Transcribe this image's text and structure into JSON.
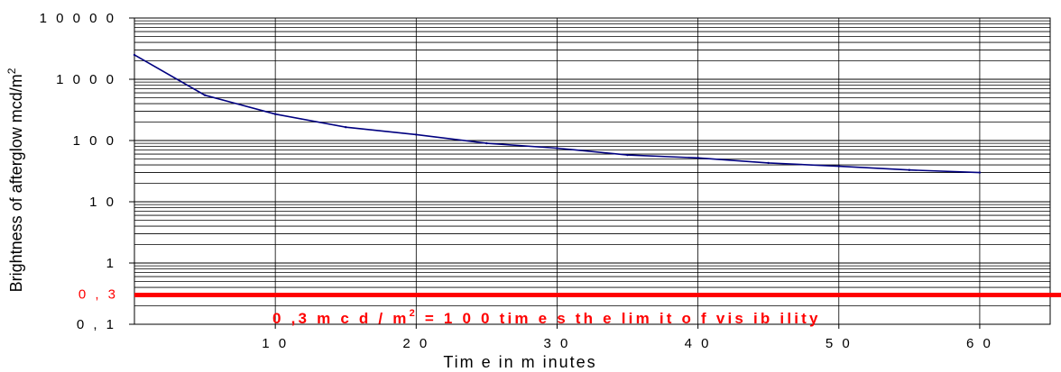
{
  "chart_data": {
    "type": "line",
    "xlabel": "Tim e  in  m inutes",
    "ylabel": "Brightness of afterglow mcd/m",
    "ylabel_sup": "2",
    "y_scale": "log",
    "xlim": [
      0,
      65
    ],
    "ylim": [
      0.1,
      10000
    ],
    "grid": true,
    "x_ticks": [
      {
        "value": 10,
        "label": "1 0"
      },
      {
        "value": 20,
        "label": "2 0"
      },
      {
        "value": 30,
        "label": "3 0"
      },
      {
        "value": 40,
        "label": "4 0"
      },
      {
        "value": 50,
        "label": "5 0"
      },
      {
        "value": 60,
        "label": "6 0"
      }
    ],
    "y_ticks": [
      {
        "value": 0.1,
        "label": "0 , 1"
      },
      {
        "value": 1,
        "label": "1"
      },
      {
        "value": 10,
        "label": "1 0"
      },
      {
        "value": 100,
        "label": "1 0 0"
      },
      {
        "value": 1000,
        "label": "1 0 0 0"
      },
      {
        "value": 10000,
        "label": "1 0 0 0 0"
      }
    ],
    "series": [
      {
        "color": "#000080",
        "x": [
          0,
          5,
          10,
          15,
          20,
          25,
          30,
          35,
          40,
          45,
          50,
          55,
          60
        ],
        "y": [
          2500,
          550,
          270,
          165,
          125,
          90,
          75,
          58,
          52,
          43,
          38,
          33,
          30
        ]
      }
    ],
    "reference_line": {
      "value": 0.3,
      "tick_label": "0 , 3",
      "label_main": "0 ,3  m c d / m",
      "label_sup": "2",
      "label_rest": " =  1 0 0  tim e s  th e  lim it o f  vis ib ility",
      "color": "#ff0000"
    }
  }
}
